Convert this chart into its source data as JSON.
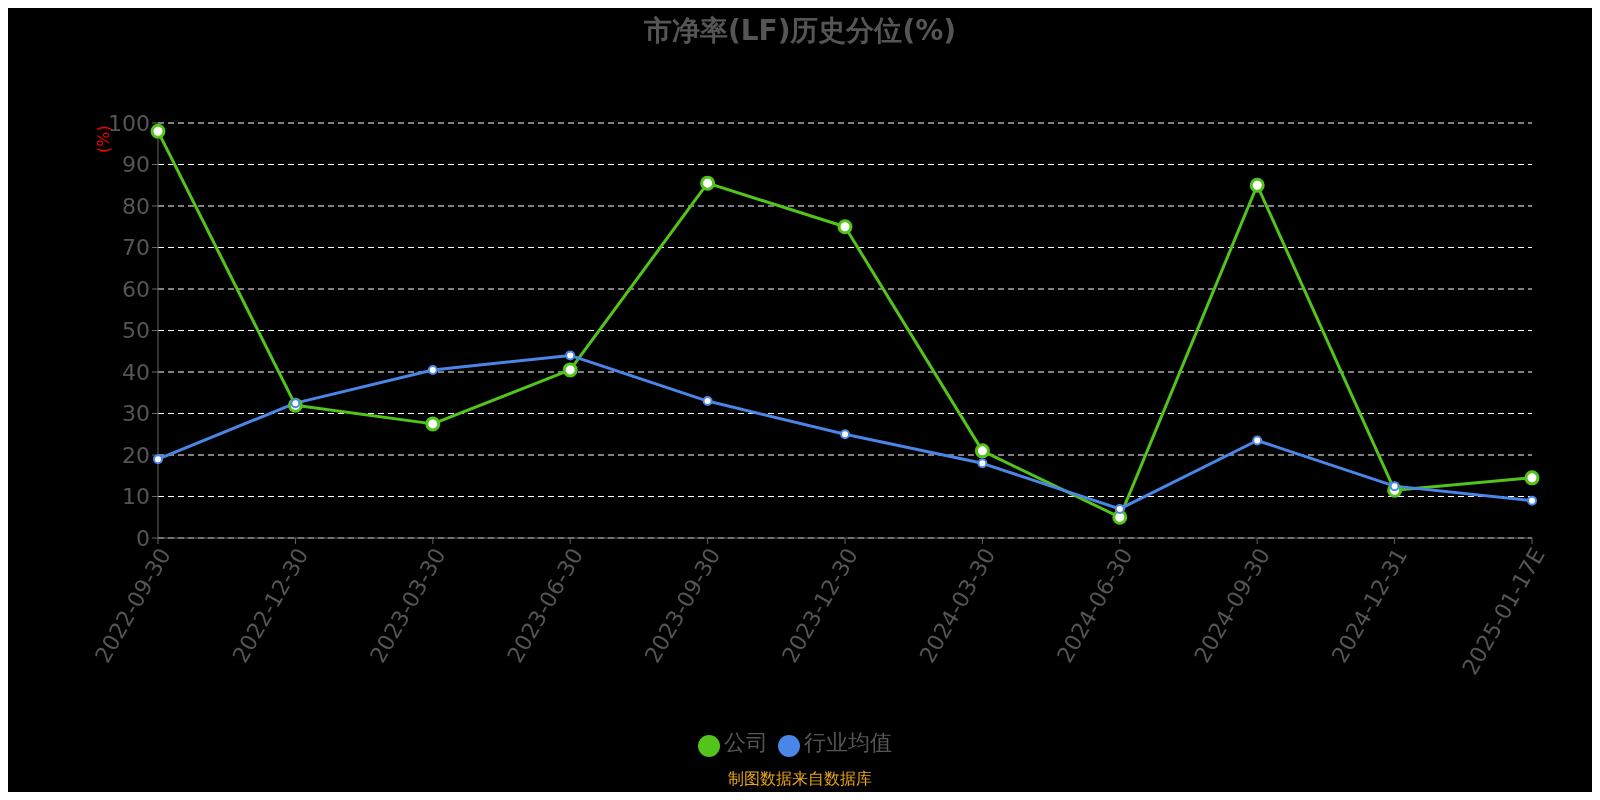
{
  "chart_data": {
    "type": "line",
    "title": "市净率(LF)历史分位(%)",
    "ylabel": "(%)",
    "categories": [
      "2022-09-30",
      "2022-12-30",
      "2023-03-30",
      "2023-06-30",
      "2023-09-30",
      "2023-12-30",
      "2024-03-30",
      "2024-06-30",
      "2024-09-30",
      "2024-12-31",
      "2025-01-17E"
    ],
    "series": [
      {
        "name": "公司",
        "color": "#52c41a",
        "values": [
          98,
          32,
          27.5,
          40.5,
          85.5,
          75,
          21,
          5,
          85,
          11.5,
          14.5
        ]
      },
      {
        "name": "行业均值",
        "color": "#4a86e8",
        "values": [
          19,
          32.5,
          40.5,
          44,
          33,
          25,
          18,
          7,
          23.5,
          12.5,
          9
        ]
      }
    ],
    "ylim": [
      0,
      100
    ],
    "yticks": [
      0,
      10,
      20,
      30,
      40,
      50,
      60,
      70,
      80,
      90,
      100
    ],
    "grid": "y",
    "legend": "bottom",
    "marker": "circle",
    "line_style": "solid",
    "annotations": [
      "制图数据来自数据库"
    ]
  }
}
